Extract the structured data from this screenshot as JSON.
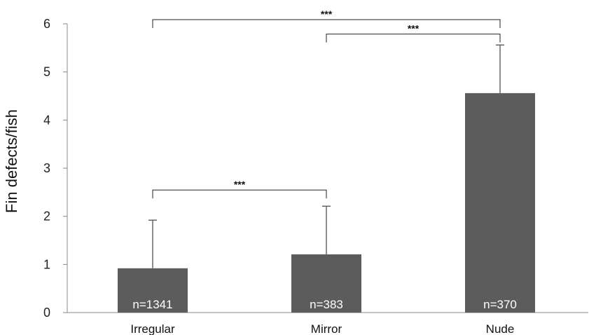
{
  "chart_data": {
    "type": "bar",
    "ylabel": "Fin defects/fish",
    "ylim": [
      0,
      6
    ],
    "yticks": [
      "0",
      "1",
      "2",
      "3",
      "4",
      "5",
      "6"
    ],
    "categories": [
      "Irregular",
      "Mirror",
      "Nude"
    ],
    "values": [
      0.92,
      1.21,
      4.56
    ],
    "error_upper": [
      1.0,
      1.0,
      1.0
    ],
    "bar_labels": [
      "n=1341",
      "n=383",
      "n=370"
    ],
    "bar_color": "#5c5c5c",
    "grid": false,
    "significance": [
      {
        "from": 0,
        "to": 2,
        "label": "***",
        "level": 6.0
      },
      {
        "from": 1,
        "to": 2,
        "label": "***",
        "level": 5.7
      },
      {
        "from": 0,
        "to": 1,
        "label": "***",
        "level": 2.46
      }
    ]
  }
}
